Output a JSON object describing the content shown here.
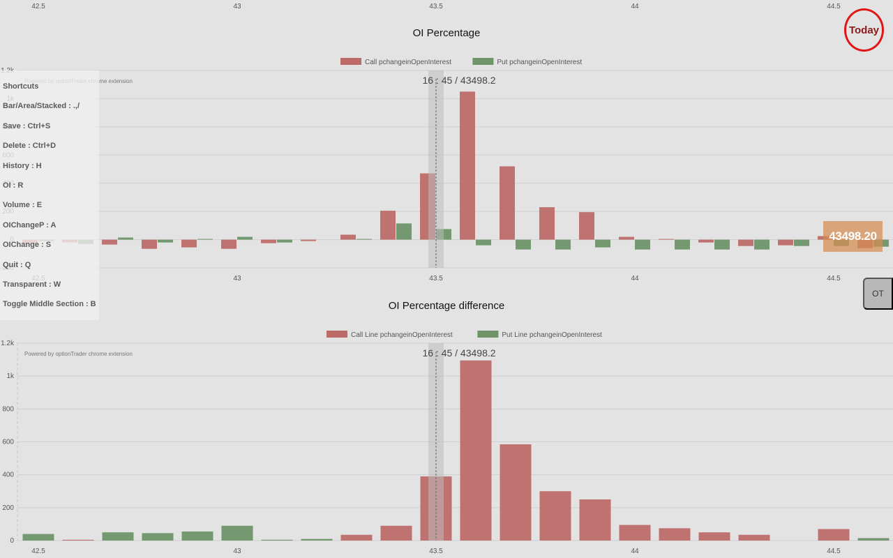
{
  "top_axis_ticks": [
    "42.5",
    "43",
    "43.5",
    "44",
    "44.5"
  ],
  "today_label": "Today",
  "ot_label": "OT",
  "price_badge": "43498.20",
  "shortcuts": {
    "items": [
      "Shortcuts",
      "Bar/Area/Stacked : .,/",
      "Save : Ctrl+S",
      "Delete : Ctrl+D",
      "History : H",
      "OI : R",
      "Volume : E",
      "OIChangeP : A",
      "OIChange : S",
      "Quit : Q",
      "Transparent : W",
      "Toggle Middle Section : B"
    ]
  },
  "colors": {
    "call": "#bd6b69",
    "put": "#6e9468",
    "grid": "#cfcfcf",
    "cursor_band": "#c2c2c2"
  },
  "chart_data": [
    {
      "type": "bar",
      "title": "OI Percentage",
      "watermark": "Powered by optionTrader chrome extension",
      "cursor_label": "16 : 45 / 43498.2",
      "cursor_x": 43.5,
      "x_ticks": [
        42.5,
        43,
        43.5,
        44,
        44.5
      ],
      "x_tick_labels": [
        "42.5",
        "43",
        "43.5",
        "44",
        "44.5"
      ],
      "y_ticks": [
        -200,
        0,
        200,
        400,
        600,
        800,
        1000,
        1200
      ],
      "y_tick_labels": [
        "-200",
        "0",
        "200",
        "400",
        "600",
        "800",
        "1k",
        "1.2k"
      ],
      "ylim": [
        -200,
        1200
      ],
      "x": [
        42.5,
        42.6,
        42.7,
        42.8,
        42.9,
        43.0,
        43.1,
        43.2,
        43.3,
        43.4,
        43.5,
        43.6,
        43.7,
        43.8,
        43.9,
        44.0,
        44.1,
        44.2,
        44.3,
        44.4,
        44.5,
        44.6
      ],
      "series": [
        {
          "name": "Call pchangeinOpenInterest",
          "color": "#bd6b69",
          "values": [
            -30,
            -20,
            -35,
            -65,
            -55,
            -65,
            -25,
            -10,
            35,
            205,
            470,
            1050,
            520,
            230,
            195,
            20,
            5,
            -20,
            -45,
            -40,
            25,
            -60
          ]
        },
        {
          "name": "Put pchangeinOpenInterest",
          "color": "#6e9468",
          "values": [
            -10,
            -30,
            15,
            -20,
            5,
            20,
            -20,
            0,
            5,
            115,
            75,
            -40,
            -70,
            -70,
            -55,
            -70,
            -70,
            -70,
            -70,
            -45,
            -45,
            -50
          ]
        }
      ],
      "legend_position": "top"
    },
    {
      "type": "bar",
      "title": "OI Percentage difference",
      "watermark": "Powered by optionTrader chrome extension",
      "cursor_label": "16 : 45 / 43498.2",
      "cursor_x": 43.5,
      "x_ticks": [
        42.5,
        43,
        43.5,
        44,
        44.5
      ],
      "x_tick_labels": [
        "42.5",
        "43",
        "43.5",
        "44",
        "44.5"
      ],
      "y_ticks": [
        0,
        200,
        400,
        600,
        800,
        1000,
        1200
      ],
      "y_tick_labels": [
        "0",
        "200",
        "400",
        "600",
        "800",
        "1k",
        "1.2k"
      ],
      "ylim": [
        0,
        1200
      ],
      "x": [
        42.5,
        42.6,
        42.7,
        42.8,
        42.9,
        43.0,
        43.1,
        43.2,
        43.3,
        43.4,
        43.5,
        43.6,
        43.7,
        43.8,
        43.9,
        44.0,
        44.1,
        44.2,
        44.3,
        44.4,
        44.5,
        44.6
      ],
      "series": [
        {
          "name": "Call Line pchangeinOpenInterest",
          "color": "#bd6b69",
          "values": [
            0,
            5,
            0,
            0,
            0,
            0,
            0,
            0,
            35,
            90,
            390,
            1095,
            585,
            300,
            250,
            95,
            75,
            50,
            35,
            0,
            70,
            0
          ]
        },
        {
          "name": "Put Line pchangeinOpenInterest",
          "color": "#6e9468",
          "values": [
            40,
            0,
            50,
            45,
            55,
            90,
            5,
            10,
            0,
            0,
            0,
            0,
            0,
            0,
            0,
            0,
            0,
            0,
            0,
            0,
            0,
            15
          ]
        }
      ],
      "legend_position": "top"
    }
  ]
}
